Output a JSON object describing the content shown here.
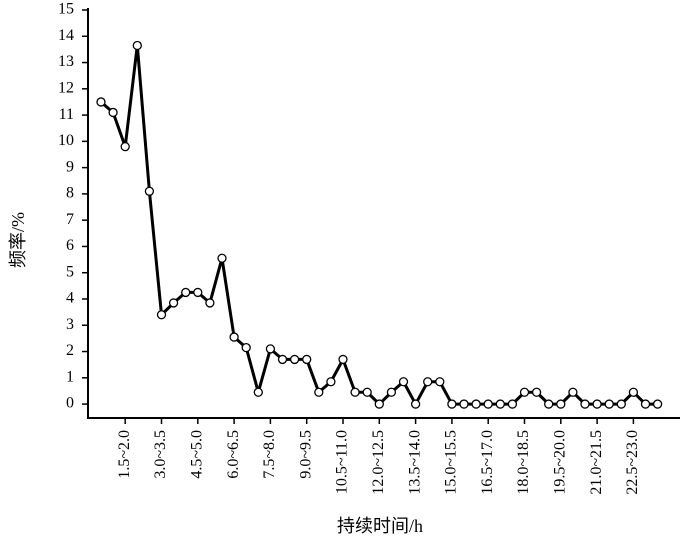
{
  "chart_data": {
    "type": "line",
    "xlabel": "持续时间/h",
    "ylabel": "频率/%",
    "categories": [
      null,
      null,
      "1.5~2.0",
      null,
      null,
      "3.0~3.5",
      null,
      null,
      "4.5~5.0",
      null,
      null,
      "6.0~6.5",
      null,
      null,
      "7.5~8.0",
      null,
      null,
      "9.0~9.5",
      null,
      null,
      "10.5~11.0",
      null,
      null,
      "12.0~12.5",
      null,
      null,
      "13.5~14.0",
      null,
      null,
      "15.0~15.5",
      null,
      null,
      "16.5~17.0",
      null,
      null,
      "18.0~18.5",
      null,
      null,
      "19.5~20.0",
      null,
      null,
      "21.0~21.5",
      null,
      null,
      "22.5~23.0",
      null,
      null
    ],
    "series": [
      {
        "color": "#000000",
        "values": [
          11.5,
          11.1,
          9.8,
          13.65,
          8.1,
          3.4,
          3.85,
          4.25,
          4.25,
          3.85,
          5.55,
          2.55,
          2.15,
          0.45,
          2.1,
          1.7,
          1.7,
          1.7,
          0.45,
          0.85,
          1.7,
          0.45,
          0.45,
          0,
          0.45,
          0.85,
          0,
          0.85,
          0.85,
          0,
          0,
          0,
          0,
          0,
          0,
          0.45,
          0.45,
          0,
          0,
          0.45,
          0,
          0,
          0,
          0,
          0.45,
          0,
          0
        ]
      }
    ],
    "ylim": [
      -0.53,
      15
    ],
    "yticks": [
      0,
      1,
      2,
      3,
      4,
      5,
      6,
      7,
      8,
      9,
      10,
      11,
      12,
      13,
      14,
      15
    ]
  }
}
